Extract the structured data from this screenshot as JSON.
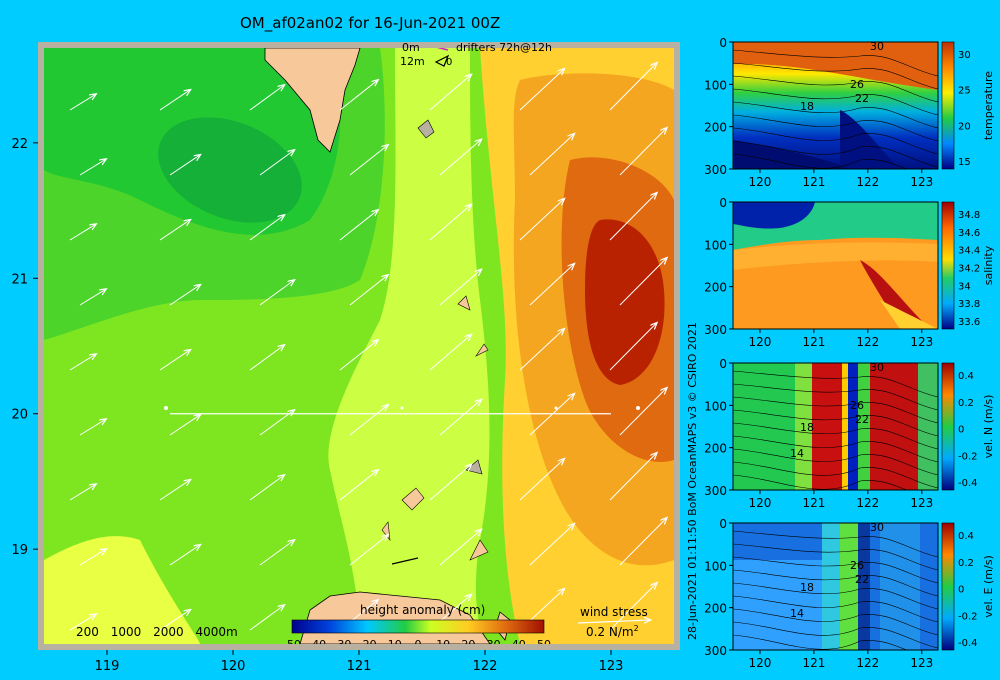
{
  "title": "OM_af02an02 for 16-Jun-2021 00Z",
  "side_stamp": "28-Jun-2021 01:11:50 BoM OceanMAPS v3      © CSIRO 2021",
  "colors": {
    "background": "#00ccff",
    "land": "#f7c89a",
    "reef": "#b8b0a0"
  },
  "drifter_legend": {
    "label_0m": "0m",
    "label_12m": "12m",
    "text": "drifters 72h@12h",
    "code": "0"
  },
  "depth_legend": [
    "200",
    "1000",
    "2000",
    "4000m"
  ],
  "colorbar": {
    "title": "height anomaly (cm)",
    "ticks": [
      "-50",
      "-40",
      "-30",
      "-20",
      "-10",
      "0",
      "10",
      "20",
      "30",
      "40",
      "50"
    ]
  },
  "wind_legend": {
    "title": "wind stress",
    "value": "0.2 N/m",
    "exp": "2"
  },
  "chart_data": [
    {
      "type": "heatmap",
      "name": "map",
      "variable": "height anomaly (cm)",
      "x_ticks": [
        119,
        120,
        121,
        122,
        123
      ],
      "y_ticks": [
        22,
        21,
        20,
        19
      ],
      "xlim": [
        118.5,
        123.5
      ],
      "ylim": [
        18.3,
        22.7
      ],
      "clim": [
        -50,
        50
      ],
      "section_line": {
        "lat": 20,
        "lon": [
          119.5,
          123.0
        ]
      },
      "wind_vectors_note": "white arrows toward northeast, larger in east"
    },
    {
      "type": "heatmap",
      "name": "temperature-section",
      "ylabel": "temperature",
      "x_ticks": [
        120,
        121,
        122,
        123
      ],
      "y_ticks": [
        0,
        100,
        200,
        300
      ],
      "cbar_ticks": [
        "30",
        "25",
        "20",
        "15"
      ],
      "clim": [
        14,
        32
      ],
      "contour_labels": [
        "30",
        "26",
        "22",
        "18"
      ]
    },
    {
      "type": "heatmap",
      "name": "salinity-section",
      "ylabel": "salinity",
      "x_ticks": [
        120,
        121,
        122,
        123
      ],
      "y_ticks": [
        0,
        100,
        200,
        300
      ],
      "cbar_ticks": [
        "34.8",
        "34.6",
        "34.4",
        "34.2",
        "34",
        "33.8",
        "33.6"
      ],
      "clim": [
        33.5,
        34.9
      ]
    },
    {
      "type": "heatmap",
      "name": "velocity-north-section",
      "ylabel": "vel. N (m/s)",
      "x_ticks": [
        120,
        121,
        122,
        123
      ],
      "y_ticks": [
        0,
        100,
        200,
        300
      ],
      "cbar_ticks": [
        "0.4",
        "0.2",
        "0",
        "-0.2",
        "-0.4"
      ],
      "clim": [
        -0.5,
        0.5
      ],
      "contour_labels": [
        "30",
        "26",
        "22",
        "18",
        "14"
      ]
    },
    {
      "type": "heatmap",
      "name": "velocity-east-section",
      "ylabel": "vel. E (m/s)",
      "x_ticks": [
        120,
        121,
        122,
        123
      ],
      "y_ticks": [
        0,
        100,
        200,
        300
      ],
      "cbar_ticks": [
        "0.4",
        "0.2",
        "0",
        "-0.2",
        "-0.4"
      ],
      "clim": [
        -0.5,
        0.5
      ],
      "contour_labels": [
        "30",
        "26",
        "22",
        "18",
        "14"
      ]
    }
  ]
}
